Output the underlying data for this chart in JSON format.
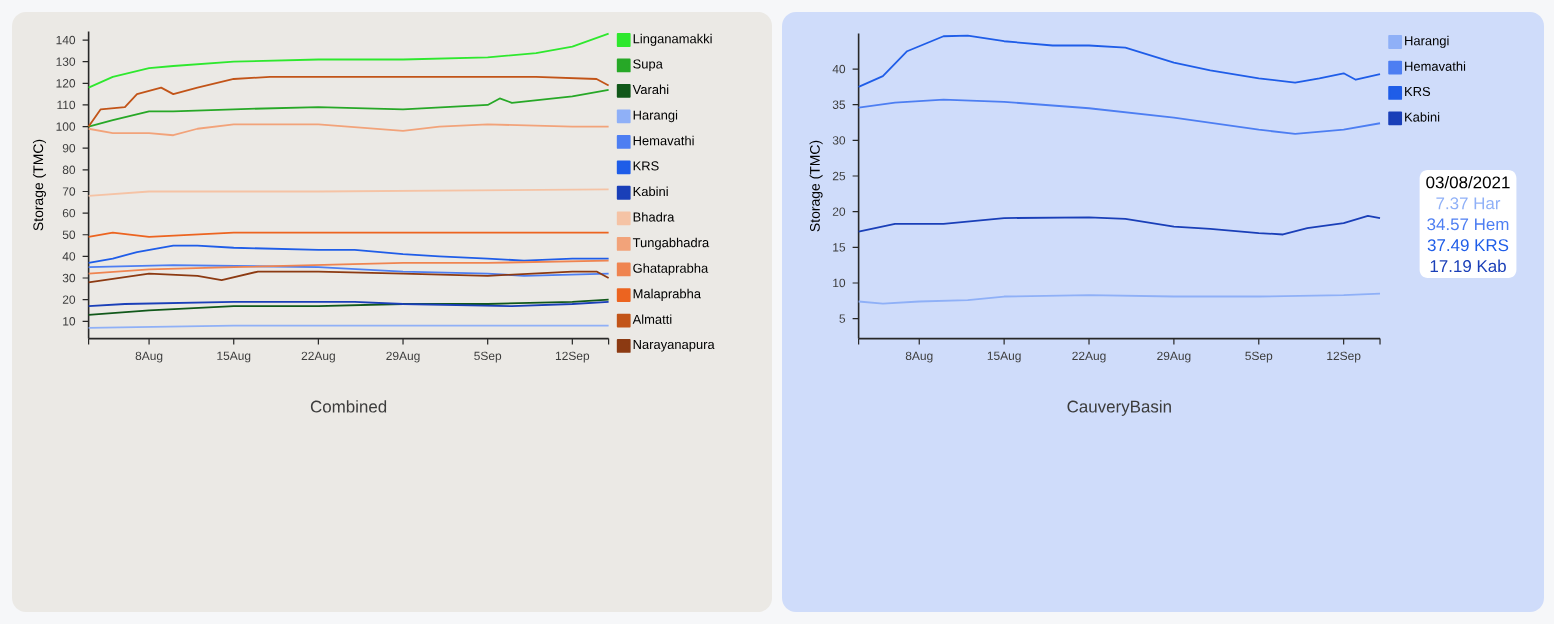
{
  "chart_data": [
    {
      "type": "line",
      "xlabel": "Combined",
      "ylabel": "Storage (TMC)",
      "legend": "right",
      "xlim": [
        "2021-08-03",
        "2021-09-15"
      ],
      "ylim": [
        2,
        144
      ],
      "xticks": [
        {
          "value": "2021-08-03",
          "label": null
        },
        {
          "value": "2021-08-08",
          "label": "8Aug"
        },
        {
          "value": "2021-08-15",
          "label": "15Aug"
        },
        {
          "value": "2021-08-22",
          "label": "22Aug"
        },
        {
          "value": "2021-08-29",
          "label": "29Aug"
        },
        {
          "value": "2021-09-05",
          "label": "5Sep"
        },
        {
          "value": "2021-09-12",
          "label": "12Sep"
        },
        {
          "value": "2021-09-15",
          "label": null
        }
      ],
      "yticks": [
        10,
        20,
        30,
        40,
        50,
        60,
        70,
        80,
        90,
        100,
        110,
        120,
        130,
        140
      ],
      "series": [
        {
          "name": "Linganamakki",
          "color": "#2ee82e",
          "x": [
            "2021-08-03",
            "2021-08-05",
            "2021-08-08",
            "2021-08-10",
            "2021-08-15",
            "2021-08-22",
            "2021-08-29",
            "2021-09-05",
            "2021-09-09",
            "2021-09-12",
            "2021-09-15"
          ],
          "values": [
            118,
            123,
            127,
            128,
            130,
            131,
            131,
            132,
            134,
            137,
            143
          ]
        },
        {
          "name": "Supa",
          "color": "#27a827",
          "x": [
            "2021-08-03",
            "2021-08-05",
            "2021-08-08",
            "2021-08-10",
            "2021-08-15",
            "2021-08-22",
            "2021-08-29",
            "2021-09-05",
            "2021-09-06",
            "2021-09-07",
            "2021-09-12",
            "2021-09-15"
          ],
          "values": [
            100,
            103,
            107,
            107,
            108,
            109,
            108,
            110,
            113,
            111,
            114,
            117
          ]
        },
        {
          "name": "Varahi",
          "color": "#11581a",
          "x": [
            "2021-08-03",
            "2021-08-08",
            "2021-08-15",
            "2021-08-22",
            "2021-08-29",
            "2021-09-05",
            "2021-09-12",
            "2021-09-15"
          ],
          "values": [
            13,
            15,
            17,
            17,
            18,
            18,
            19,
            20
          ]
        },
        {
          "name": "Harangi",
          "color": "#8fb0f7",
          "x": [
            "2021-08-03",
            "2021-08-15",
            "2021-09-15"
          ],
          "values": [
            7,
            8,
            8
          ]
        },
        {
          "name": "Hemavathi",
          "color": "#4d7ef2",
          "x": [
            "2021-08-03",
            "2021-08-10",
            "2021-08-22",
            "2021-08-29",
            "2021-09-05",
            "2021-09-08",
            "2021-09-15"
          ],
          "values": [
            35,
            36,
            35,
            33,
            32,
            31,
            32
          ]
        },
        {
          "name": "KRS",
          "color": "#1f5de8",
          "x": [
            "2021-08-03",
            "2021-08-05",
            "2021-08-07",
            "2021-08-10",
            "2021-08-12",
            "2021-08-15",
            "2021-08-22",
            "2021-08-25",
            "2021-08-29",
            "2021-09-01",
            "2021-09-05",
            "2021-09-08",
            "2021-09-12",
            "2021-09-15"
          ],
          "values": [
            37,
            39,
            42,
            45,
            45,
            44,
            43,
            43,
            41,
            40,
            39,
            38,
            39,
            39
          ]
        },
        {
          "name": "Kabini",
          "color": "#1a3fb8",
          "x": [
            "2021-08-03",
            "2021-08-06",
            "2021-08-15",
            "2021-08-25",
            "2021-08-29",
            "2021-09-07",
            "2021-09-12",
            "2021-09-15"
          ],
          "values": [
            17,
            18,
            19,
            19,
            18,
            17,
            18,
            19
          ]
        },
        {
          "name": "Bhadra",
          "color": "#f5c3a5",
          "x": [
            "2021-08-03",
            "2021-08-08",
            "2021-08-22",
            "2021-09-15"
          ],
          "values": [
            68,
            70,
            70,
            71
          ]
        },
        {
          "name": "Tungabhadra",
          "color": "#f2a37a",
          "x": [
            "2021-08-03",
            "2021-08-05",
            "2021-08-08",
            "2021-08-10",
            "2021-08-12",
            "2021-08-15",
            "2021-08-22",
            "2021-08-29",
            "2021-09-01",
            "2021-09-05",
            "2021-09-12",
            "2021-09-15"
          ],
          "values": [
            99,
            97,
            97,
            96,
            99,
            101,
            101,
            98,
            100,
            101,
            100,
            100
          ]
        },
        {
          "name": "Ghataprabha",
          "color": "#ef8450",
          "x": [
            "2021-08-03",
            "2021-08-08",
            "2021-08-15",
            "2021-08-29",
            "2021-09-05",
            "2021-09-15"
          ],
          "values": [
            32,
            34,
            35,
            37,
            37,
            38
          ]
        },
        {
          "name": "Malaprabha",
          "color": "#ec6420",
          "x": [
            "2021-08-03",
            "2021-08-05",
            "2021-08-08",
            "2021-08-15",
            "2021-09-15"
          ],
          "values": [
            49,
            51,
            49,
            51,
            51
          ]
        },
        {
          "name": "Almatti",
          "color": "#c25418",
          "x": [
            "2021-08-03",
            "2021-08-04",
            "2021-08-06",
            "2021-08-07",
            "2021-08-09",
            "2021-08-10",
            "2021-08-12",
            "2021-08-15",
            "2021-08-18",
            "2021-08-22",
            "2021-09-09",
            "2021-09-14",
            "2021-09-15"
          ],
          "values": [
            100,
            108,
            109,
            115,
            118,
            115,
            118,
            122,
            123,
            123,
            123,
            122,
            119
          ]
        },
        {
          "name": "Narayanapura",
          "color": "#8c3a12",
          "x": [
            "2021-08-03",
            "2021-08-08",
            "2021-08-12",
            "2021-08-14",
            "2021-08-17",
            "2021-08-22",
            "2021-08-29",
            "2021-09-05",
            "2021-09-12",
            "2021-09-14",
            "2021-09-15"
          ],
          "values": [
            28,
            32,
            31,
            29,
            33,
            33,
            32,
            31,
            33,
            33,
            30
          ]
        }
      ]
    },
    {
      "type": "line",
      "xlabel": "CauveryBasin",
      "ylabel": "Storage (TMC)",
      "legend": "right",
      "xlim": [
        "2021-08-03",
        "2021-09-15"
      ],
      "ylim": [
        2.2,
        45
      ],
      "xticks": [
        {
          "value": "2021-08-03",
          "label": null
        },
        {
          "value": "2021-08-08",
          "label": "8Aug"
        },
        {
          "value": "2021-08-15",
          "label": "15Aug"
        },
        {
          "value": "2021-08-22",
          "label": "22Aug"
        },
        {
          "value": "2021-08-29",
          "label": "29Aug"
        },
        {
          "value": "2021-09-05",
          "label": "5Sep"
        },
        {
          "value": "2021-09-12",
          "label": "12Sep"
        },
        {
          "value": "2021-09-15",
          "label": null
        }
      ],
      "yticks": [
        5,
        10,
        15,
        20,
        25,
        30,
        35,
        40
      ],
      "series": [
        {
          "name": "Harangi",
          "color": "#8fb0f7",
          "x": [
            "2021-08-03",
            "2021-08-05",
            "2021-08-08",
            "2021-08-12",
            "2021-08-15",
            "2021-08-22",
            "2021-08-29",
            "2021-09-05",
            "2021-09-12",
            "2021-09-15"
          ],
          "values": [
            7.4,
            7.1,
            7.4,
            7.6,
            8.1,
            8.3,
            8.1,
            8.1,
            8.3,
            8.5
          ]
        },
        {
          "name": "Hemavathi",
          "color": "#4d7ef2",
          "x": [
            "2021-08-03",
            "2021-08-06",
            "2021-08-10",
            "2021-08-15",
            "2021-08-22",
            "2021-08-29",
            "2021-09-05",
            "2021-09-08",
            "2021-09-12",
            "2021-09-15"
          ],
          "values": [
            34.6,
            35.3,
            35.7,
            35.4,
            34.5,
            33.2,
            31.5,
            30.9,
            31.5,
            32.4
          ]
        },
        {
          "name": "KRS",
          "color": "#1f5de8",
          "x": [
            "2021-08-03",
            "2021-08-05",
            "2021-08-07",
            "2021-08-10",
            "2021-08-12",
            "2021-08-15",
            "2021-08-19",
            "2021-08-22",
            "2021-08-25",
            "2021-08-29",
            "2021-09-01",
            "2021-09-05",
            "2021-09-08",
            "2021-09-10",
            "2021-09-12",
            "2021-09-13",
            "2021-09-15"
          ],
          "values": [
            37.5,
            39.0,
            42.5,
            44.6,
            44.7,
            43.9,
            43.3,
            43.3,
            43.0,
            40.9,
            39.8,
            38.7,
            38.1,
            38.7,
            39.4,
            38.5,
            39.3
          ]
        },
        {
          "name": "Kabini",
          "color": "#1a3fb8",
          "x": [
            "2021-08-03",
            "2021-08-06",
            "2021-08-10",
            "2021-08-15",
            "2021-08-22",
            "2021-08-25",
            "2021-08-29",
            "2021-09-01",
            "2021-09-05",
            "2021-09-07",
            "2021-09-09",
            "2021-09-12",
            "2021-09-14",
            "2021-09-15"
          ],
          "values": [
            17.2,
            18.3,
            18.3,
            19.1,
            19.2,
            19.0,
            17.9,
            17.6,
            17.0,
            16.8,
            17.7,
            18.4,
            19.4,
            19.1
          ]
        }
      ],
      "annotations": [
        "03/08/2021",
        "7.37 Har",
        "34.57 Hem",
        "37.49 KRS",
        "17.19 Kab"
      ]
    }
  ]
}
